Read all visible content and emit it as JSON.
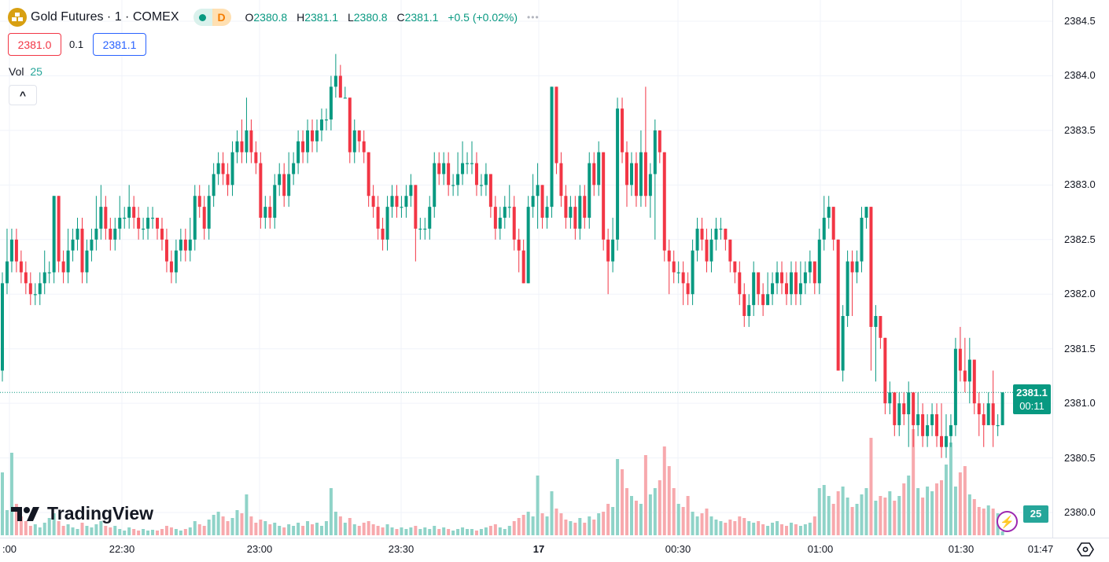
{
  "header": {
    "symbol": "Gold Futures · 1 · COMEX",
    "market_status_letter": "D",
    "ohlc": {
      "o_label": "O",
      "o": "2380.8",
      "h_label": "H",
      "h": "2381.1",
      "l_label": "L",
      "l": "2380.8",
      "c_label": "C",
      "c": "2381.1",
      "change": "+0.5 (+0.02%)"
    },
    "more": "•••"
  },
  "quote": {
    "bid": "2381.0",
    "spread": "0.1",
    "ask": "2381.1"
  },
  "volume_legend": {
    "label": "Vol",
    "value": "25"
  },
  "collapse_button": "^",
  "price_tag": {
    "price": "2381.1",
    "countdown": "00:11"
  },
  "volume_tag": "25",
  "logo": "TradingView",
  "colors": {
    "up": "#089981",
    "down": "#f23645",
    "up_vol": "#8fd3c8",
    "down_vol": "#f7a9ad"
  },
  "chart_data": {
    "type": "candlestick",
    "interval": "1 minute",
    "start_time": "22:05",
    "y_ticks": [
      "2384.5",
      "2384.0",
      "2383.5",
      "2383.0",
      "2382.5",
      "2382.0",
      "2381.5",
      "2381.0",
      "2380.5",
      "2380.0"
    ],
    "x_ticks": [
      ":00",
      "22:30",
      "23:00",
      "23:30",
      "17",
      "00:30",
      "01:00",
      "01:30",
      "01:47"
    ],
    "ylim": [
      2379.9,
      2384.7
    ],
    "grid": true,
    "open": [
      2381.3,
      2382.1,
      2382.3,
      2382.5,
      2382.3,
      2382.2,
      2382.1,
      2382.0,
      2382.0,
      2382.1,
      2382.2,
      2382.2,
      2382.9,
      2382.3,
      2382.2,
      2382.4,
      2382.5,
      2382.6,
      2382.2,
      2382.4,
      2382.5,
      2382.6,
      2382.8,
      2382.6,
      2382.5,
      2382.6,
      2382.7,
      2382.7,
      2382.8,
      2382.7,
      2382.6,
      2382.6,
      2382.7,
      2382.7,
      2382.6,
      2382.5,
      2382.3,
      2382.2,
      2382.4,
      2382.5,
      2382.4,
      2382.5,
      2382.9,
      2382.8,
      2382.6,
      2382.9,
      2383.1,
      2383.2,
      2383.1,
      2383.0,
      2383.3,
      2383.4,
      2383.3,
      2383.5,
      2383.3,
      2383.2,
      2382.7,
      2382.8,
      2382.7,
      2383.0,
      2383.1,
      2382.9,
      2383.1,
      2383.2,
      2383.4,
      2383.3,
      2383.5,
      2383.4,
      2383.5,
      2383.6,
      2383.6,
      2383.9,
      2384.0,
      2383.8,
      2383.8,
      2383.3,
      2383.5,
      2383.4,
      2383.3,
      2382.9,
      2382.8,
      2382.6,
      2382.5,
      2382.8,
      2382.9,
      2382.8,
      2382.8,
      2382.9,
      2383.0,
      2382.6,
      2382.6,
      2382.6,
      2382.8,
      2383.2,
      2383.1,
      2383.2,
      2383.0,
      2383.0,
      2383.1,
      2383.2,
      2383.2,
      2383.2,
      2383.0,
      2383.0,
      2383.1,
      2382.8,
      2382.6,
      2382.7,
      2382.8,
      2382.8,
      2382.5,
      2382.4,
      2382.1,
      2382.8,
      2382.9,
      2383.0,
      2382.7,
      2382.8,
      2383.9,
      2383.2,
      2382.9,
      2382.7,
      2382.8,
      2382.6,
      2382.9,
      2382.7,
      2383.2,
      2383.0,
      2383.3,
      2382.5,
      2382.3,
      2382.5,
      2383.7,
      2383.3,
      2383.0,
      2383.2,
      2382.9,
      2383.3,
      2382.9,
      2383.1,
      2383.5,
      2383.3,
      2382.4,
      2382.3,
      2382.2,
      2382.2,
      2382.1,
      2382.0,
      2382.4,
      2382.6,
      2382.5,
      2382.3,
      2382.5,
      2382.6,
      2382.6,
      2382.5,
      2382.3,
      2382.2,
      2382.0,
      2381.8,
      2381.9,
      2382.2,
      2382.0,
      2381.9,
      2382.0,
      2382.1,
      2382.2,
      2382.1,
      2382.0,
      2382.2,
      2382.0,
      2382.1,
      2382.2,
      2382.3,
      2382.1,
      2382.5,
      2382.7,
      2382.8,
      2382.5,
      2381.3,
      2381.8,
      2382.3,
      2382.2,
      2382.3,
      2382.7,
      2382.8,
      2381.7,
      2381.8,
      2381.6,
      2381.0,
      2381.1,
      2380.8,
      2381.0,
      2380.9,
      2381.1,
      2380.8,
      2380.9,
      2380.7,
      2380.8,
      2380.9,
      2380.7,
      2380.6,
      2380.7,
      2380.8,
      2381.5,
      2381.3,
      2381.2,
      2381.4,
      2381.0,
      2380.9,
      2380.8,
      2381.0,
      2380.8,
      2380.8
    ],
    "high": [
      2382.2,
      2382.6,
      2382.6,
      2382.6,
      2382.4,
      2382.3,
      2382.2,
      2382.1,
      2382.2,
      2382.4,
      2382.3,
      2382.9,
      2382.9,
      2382.4,
      2382.6,
      2382.6,
      2382.7,
      2382.7,
      2382.5,
      2382.6,
      2382.9,
      2383.0,
      2382.9,
      2382.7,
      2382.7,
      2382.9,
      2382.8,
      2383.0,
      2382.9,
      2382.8,
      2382.7,
      2382.8,
      2382.8,
      2382.7,
      2382.7,
      2382.6,
      2382.4,
      2382.5,
      2382.6,
      2382.6,
      2382.7,
      2383.0,
      2383.0,
      2382.9,
      2383.0,
      2383.2,
      2383.3,
      2383.3,
      2383.2,
      2383.4,
      2383.5,
      2383.6,
      2383.8,
      2383.6,
      2383.4,
      2383.3,
      2382.9,
      2382.9,
      2383.1,
      2383.2,
      2383.2,
      2383.3,
      2383.3,
      2383.5,
      2383.5,
      2383.6,
      2383.6,
      2383.6,
      2383.7,
      2383.7,
      2384.0,
      2384.2,
      2384.1,
      2383.9,
      2383.8,
      2383.6,
      2383.5,
      2383.5,
      2383.3,
      2383.0,
      2382.9,
      2382.7,
      2382.9,
      2383.0,
      2383.0,
      2382.9,
      2383.0,
      2383.1,
      2383.0,
      2382.7,
      2382.7,
      2382.9,
      2383.3,
      2383.3,
      2383.3,
      2383.3,
      2383.1,
      2383.3,
      2383.4,
      2383.3,
      2383.4,
      2383.3,
      2383.1,
      2383.2,
      2383.1,
      2382.9,
      2382.8,
      2382.9,
      2383.0,
      2382.9,
      2382.6,
      2382.5,
      2382.9,
      2383.1,
      2383.2,
      2383.0,
      2382.9,
      2383.9,
      2383.9,
      2383.3,
      2383.0,
      2382.9,
      2382.9,
      2383.0,
      2383.0,
      2383.3,
      2383.3,
      2383.4,
      2383.3,
      2382.6,
      2382.7,
      2383.8,
      2383.8,
      2383.4,
      2383.3,
      2383.3,
      2383.5,
      2383.9,
      2383.2,
      2383.6,
      2383.5,
      2383.3,
      2382.5,
      2382.4,
      2382.3,
      2382.3,
      2382.2,
      2382.5,
      2382.7,
      2382.7,
      2382.6,
      2382.6,
      2382.7,
      2382.7,
      2382.6,
      2382.5,
      2382.3,
      2382.3,
      2382.1,
      2382.0,
      2382.3,
      2382.2,
      2382.1,
      2382.2,
      2382.2,
      2382.3,
      2382.3,
      2382.2,
      2382.3,
      2382.3,
      2382.3,
      2382.3,
      2382.4,
      2382.3,
      2382.6,
      2382.9,
      2382.9,
      2382.8,
      2382.5,
      2381.9,
      2382.4,
      2382.4,
      2382.4,
      2382.8,
      2382.8,
      2382.8,
      2381.9,
      2381.8,
      2381.6,
      2381.2,
      2381.1,
      2381.1,
      2381.1,
      2381.2,
      2381.1,
      2381.1,
      2381.0,
      2380.9,
      2381.0,
      2381.0,
      2381.0,
      2380.9,
      2380.9,
      2381.6,
      2381.7,
      2381.6,
      2381.6,
      2381.4,
      2381.1,
      2381.0,
      2381.1,
      2381.3,
      2380.9,
      2381.1
    ],
    "low": [
      2381.2,
      2382.0,
      2382.2,
      2382.2,
      2382.1,
      2382.0,
      2381.9,
      2381.9,
      2381.9,
      2382.0,
      2382.1,
      2382.1,
      2382.2,
      2382.1,
      2382.1,
      2382.3,
      2382.4,
      2382.1,
      2382.1,
      2382.3,
      2382.4,
      2382.5,
      2382.5,
      2382.4,
      2382.4,
      2382.5,
      2382.6,
      2382.6,
      2382.6,
      2382.5,
      2382.5,
      2382.5,
      2382.6,
      2382.5,
      2382.4,
      2382.2,
      2382.1,
      2382.1,
      2382.3,
      2382.3,
      2382.3,
      2382.4,
      2382.7,
      2382.5,
      2382.5,
      2382.8,
      2383.0,
      2383.0,
      2382.9,
      2382.9,
      2383.2,
      2383.2,
      2383.2,
      2383.2,
      2383.1,
      2382.6,
      2382.6,
      2382.6,
      2382.6,
      2382.9,
      2382.8,
      2382.8,
      2383.0,
      2383.1,
      2383.2,
      2383.2,
      2383.3,
      2383.3,
      2383.4,
      2383.5,
      2383.5,
      2383.8,
      2383.8,
      2383.8,
      2383.2,
      2383.2,
      2383.3,
      2383.2,
      2382.8,
      2382.7,
      2382.5,
      2382.4,
      2382.4,
      2382.7,
      2382.7,
      2382.7,
      2382.7,
      2382.8,
      2382.3,
      2382.5,
      2382.5,
      2382.5,
      2382.7,
      2383.0,
      2383.0,
      2382.9,
      2382.9,
      2382.9,
      2383.0,
      2383.1,
      2383.1,
      2382.9,
      2382.9,
      2382.9,
      2382.7,
      2382.5,
      2382.5,
      2382.6,
      2382.7,
      2382.4,
      2382.2,
      2382.1,
      2382.1,
      2382.7,
      2382.6,
      2382.6,
      2382.6,
      2382.7,
      2383.1,
      2382.8,
      2382.6,
      2382.6,
      2382.5,
      2382.5,
      2382.6,
      2382.6,
      2382.9,
      2382.9,
      2382.4,
      2382.0,
      2382.2,
      2382.4,
      2383.2,
      2382.8,
      2382.9,
      2382.8,
      2382.8,
      2382.8,
      2382.7,
      2382.5,
      2383.2,
      2382.3,
      2382.0,
      2382.1,
      2382.1,
      2381.9,
      2381.9,
      2381.9,
      2382.3,
      2382.4,
      2382.2,
      2382.2,
      2382.4,
      2382.5,
      2382.4,
      2382.2,
      2382.1,
      2381.9,
      2381.7,
      2381.7,
      2381.8,
      2381.9,
      2381.8,
      2381.9,
      2381.9,
      2382.0,
      2382.0,
      2381.9,
      2381.9,
      2381.9,
      2381.9,
      2382.0,
      2382.1,
      2382.0,
      2382.0,
      2382.4,
      2382.6,
      2382.4,
      2381.3,
      2381.2,
      2381.7,
      2381.8,
      2382.1,
      2382.2,
      2382.6,
      2381.3,
      2381.2,
      2381.5,
      2380.9,
      2380.9,
      2380.7,
      2380.7,
      2380.8,
      2380.6,
      2380.6,
      2380.7,
      2380.6,
      2380.6,
      2380.7,
      2380.6,
      2380.5,
      2380.5,
      2380.6,
      2380.7,
      2381.2,
      2381.1,
      2381.0,
      2380.9,
      2380.7,
      2380.6,
      2380.8,
      2380.6,
      2380.7,
      2380.8
    ],
    "close": [
      2382.1,
      2382.3,
      2382.5,
      2382.3,
      2382.2,
      2382.1,
      2382.0,
      2382.0,
      2382.1,
      2382.2,
      2382.2,
      2382.9,
      2382.3,
      2382.2,
      2382.4,
      2382.5,
      2382.6,
      2382.2,
      2382.4,
      2382.5,
      2382.6,
      2382.8,
      2382.6,
      2382.5,
      2382.6,
      2382.7,
      2382.7,
      2382.8,
      2382.7,
      2382.6,
      2382.6,
      2382.7,
      2382.7,
      2382.6,
      2382.5,
      2382.3,
      2382.2,
      2382.4,
      2382.5,
      2382.4,
      2382.5,
      2382.9,
      2382.8,
      2382.6,
      2382.9,
      2383.1,
      2383.2,
      2383.1,
      2383.0,
      2383.3,
      2383.4,
      2383.3,
      2383.5,
      2383.3,
      2383.2,
      2382.7,
      2382.8,
      2382.7,
      2383.0,
      2383.1,
      2382.9,
      2383.1,
      2383.2,
      2383.4,
      2383.3,
      2383.5,
      2383.4,
      2383.5,
      2383.6,
      2383.6,
      2383.9,
      2384.0,
      2383.8,
      2383.8,
      2383.3,
      2383.5,
      2383.4,
      2383.3,
      2382.9,
      2382.8,
      2382.6,
      2382.5,
      2382.8,
      2382.9,
      2382.8,
      2382.8,
      2382.9,
      2383.0,
      2382.6,
      2382.6,
      2382.6,
      2382.8,
      2383.2,
      2383.1,
      2383.2,
      2383.0,
      2383.0,
      2383.1,
      2383.2,
      2383.2,
      2383.2,
      2383.0,
      2383.0,
      2383.1,
      2382.8,
      2382.6,
      2382.7,
      2382.8,
      2382.8,
      2382.5,
      2382.4,
      2382.1,
      2382.8,
      2382.9,
      2383.0,
      2382.7,
      2382.8,
      2383.9,
      2383.2,
      2382.9,
      2382.7,
      2382.8,
      2382.6,
      2382.9,
      2382.7,
      2383.2,
      2383.0,
      2383.3,
      2382.5,
      2382.3,
      2382.5,
      2383.7,
      2383.3,
      2383.0,
      2383.2,
      2382.9,
      2383.3,
      2382.9,
      2383.1,
      2383.5,
      2383.3,
      2382.4,
      2382.3,
      2382.2,
      2382.2,
      2382.1,
      2382.0,
      2382.4,
      2382.6,
      2382.5,
      2382.3,
      2382.5,
      2382.6,
      2382.6,
      2382.5,
      2382.3,
      2382.2,
      2382.0,
      2381.8,
      2381.9,
      2382.2,
      2382.0,
      2381.9,
      2382.0,
      2382.1,
      2382.2,
      2382.1,
      2382.0,
      2382.2,
      2382.0,
      2382.1,
      2382.2,
      2382.3,
      2382.1,
      2382.5,
      2382.7,
      2382.8,
      2382.5,
      2381.3,
      2381.8,
      2382.3,
      2382.2,
      2382.3,
      2382.7,
      2382.8,
      2381.7,
      2381.8,
      2381.6,
      2381.0,
      2381.1,
      2380.8,
      2381.0,
      2380.9,
      2381.1,
      2380.8,
      2380.9,
      2380.7,
      2380.8,
      2380.9,
      2380.7,
      2380.6,
      2380.7,
      2380.8,
      2381.5,
      2381.3,
      2381.2,
      2381.4,
      2381.0,
      2380.9,
      2380.8,
      2381.0,
      2380.8,
      2380.8,
      2381.1
    ],
    "volume": [
      400,
      160,
      525,
      200,
      120,
      90,
      60,
      70,
      50,
      80,
      110,
      140,
      90,
      60,
      70,
      50,
      40,
      80,
      60,
      50,
      70,
      90,
      60,
      50,
      60,
      40,
      30,
      50,
      40,
      30,
      40,
      30,
      35,
      30,
      40,
      60,
      50,
      40,
      30,
      40,
      50,
      90,
      70,
      60,
      100,
      130,
      150,
      120,
      90,
      110,
      160,
      140,
      260,
      120,
      80,
      100,
      90,
      70,
      80,
      60,
      50,
      70,
      60,
      80,
      60,
      90,
      70,
      80,
      60,
      90,
      300,
      150,
      120,
      80,
      110,
      70,
      60,
      80,
      90,
      70,
      60,
      50,
      70,
      50,
      40,
      50,
      40,
      50,
      60,
      40,
      50,
      40,
      60,
      40,
      50,
      40,
      30,
      40,
      50,
      40,
      40,
      30,
      40,
      50,
      60,
      70,
      50,
      40,
      60,
      90,
      110,
      130,
      150,
      120,
      380,
      140,
      120,
      280,
      170,
      140,
      100,
      90,
      80,
      110,
      80,
      120,
      100,
      140,
      150,
      200,
      180,
      485,
      420,
      300,
      250,
      220,
      200,
      510,
      260,
      300,
      350,
      565,
      440,
      300,
      200,
      180,
      250,
      150,
      120,
      140,
      170,
      120,
      100,
      90,
      80,
      100,
      90,
      120,
      110,
      90,
      80,
      90,
      70,
      60,
      80,
      90,
      70,
      60,
      80,
      70,
      60,
      70,
      80,
      120,
      300,
      320,
      250,
      200,
      280,
      310,
      240,
      180,
      200,
      260,
      300,
      620,
      220,
      250,
      240,
      280,
      220,
      250,
      330,
      380,
      675,
      300,
      240,
      310,
      280,
      330,
      350,
      450,
      590,
      310,
      400,
      440,
      260,
      230,
      180,
      170,
      190,
      170,
      140,
      25
    ]
  }
}
